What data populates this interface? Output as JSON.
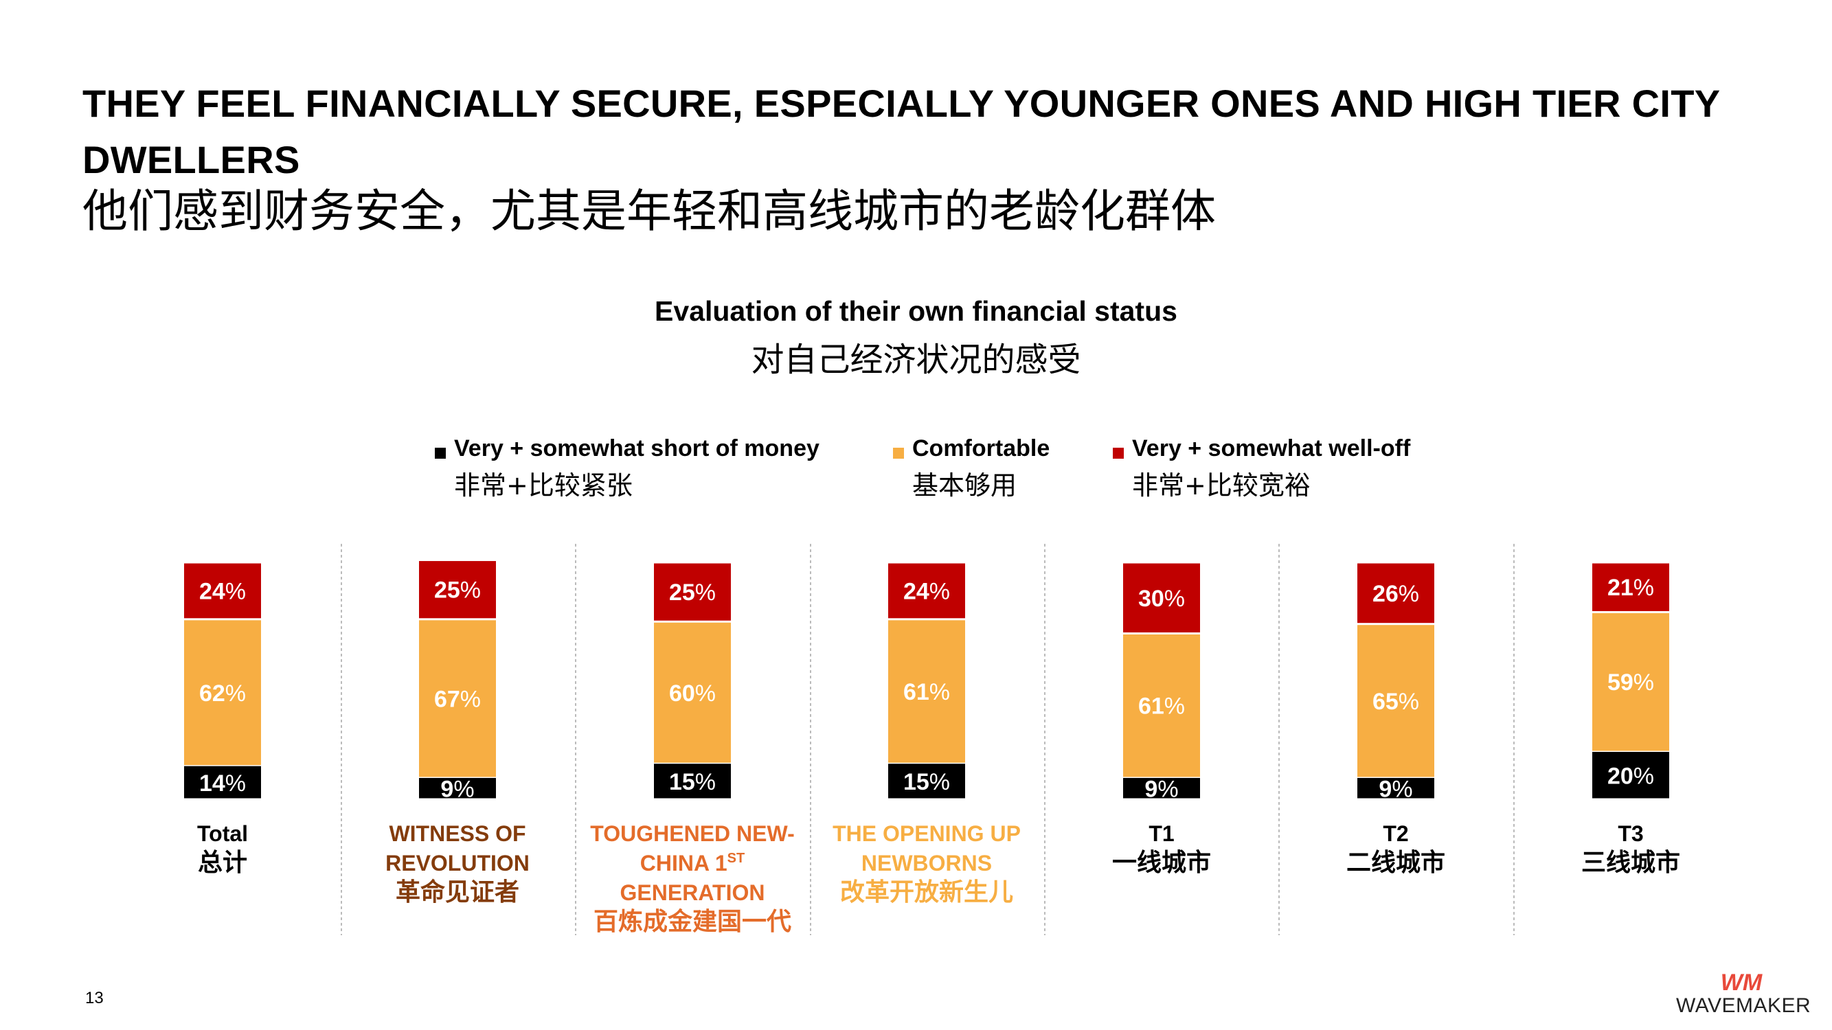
{
  "title_en": "THEY FEEL FINANCIALLY SECURE, ESPECIALLY YOUNGER ONES AND HIGH TIER CITY DWELLERS",
  "title_cn": "他们感到财务安全，尤其是年轻和高线城市的老龄化群体",
  "page_number": "13",
  "logo": {
    "mark": "WM",
    "word": "WAVEMAKER"
  },
  "colors": {
    "short": "#000000",
    "comfortable": "#F7AE43",
    "welloff": "#C00000"
  },
  "chart_data": {
    "type": "bar",
    "stacked": true,
    "percent_suffix": "%",
    "title": "Evaluation of their own financial status",
    "subtitle": "对自己经济状况的感受",
    "legend": [
      {
        "key": "short",
        "en": "Very + somewhat short of money",
        "cn": "非常+比较紧张",
        "color": "#000000"
      },
      {
        "key": "comfortable",
        "en": "Comfortable",
        "cn": "基本够用",
        "color": "#F7AE43"
      },
      {
        "key": "welloff",
        "en": "Very + somewhat well-off",
        "cn": "非常+比较宽裕",
        "color": "#C00000"
      }
    ],
    "categories": [
      {
        "label_lines": [
          "Total",
          "总计"
        ],
        "color": "#000000"
      },
      {
        "label_lines": [
          "WITNESS OF",
          "REVOLUTION",
          "革命见证者"
        ],
        "color": "#843C0C"
      },
      {
        "label_lines": [
          "TOUGHENED NEW-",
          "CHINA 1ST",
          "GENERATION",
          "百炼成金建国一代"
        ],
        "color": "#E46C2A",
        "superscript": {
          "line": 1,
          "base": "CHINA 1",
          "sup": "ST"
        }
      },
      {
        "label_lines": [
          "THE OPENING UP",
          "NEWBORNS",
          "改革开放新生儿"
        ],
        "color": "#F7AE43"
      },
      {
        "label_lines": [
          "T1",
          "一线城市"
        ],
        "color": "#000000"
      },
      {
        "label_lines": [
          "T2",
          "二线城市"
        ],
        "color": "#000000"
      },
      {
        "label_lines": [
          "T3",
          "三线城市"
        ],
        "color": "#000000"
      }
    ],
    "series": [
      {
        "name": "Very + somewhat short of money",
        "key": "short",
        "values": [
          14,
          9,
          15,
          15,
          9,
          9,
          20
        ]
      },
      {
        "name": "Comfortable",
        "key": "comfortable",
        "values": [
          62,
          67,
          60,
          61,
          61,
          65,
          59
        ]
      },
      {
        "name": "Very + somewhat well-off",
        "key": "welloff",
        "values": [
          24,
          25,
          25,
          24,
          30,
          26,
          21
        ]
      }
    ],
    "ylim": [
      0,
      100
    ]
  }
}
